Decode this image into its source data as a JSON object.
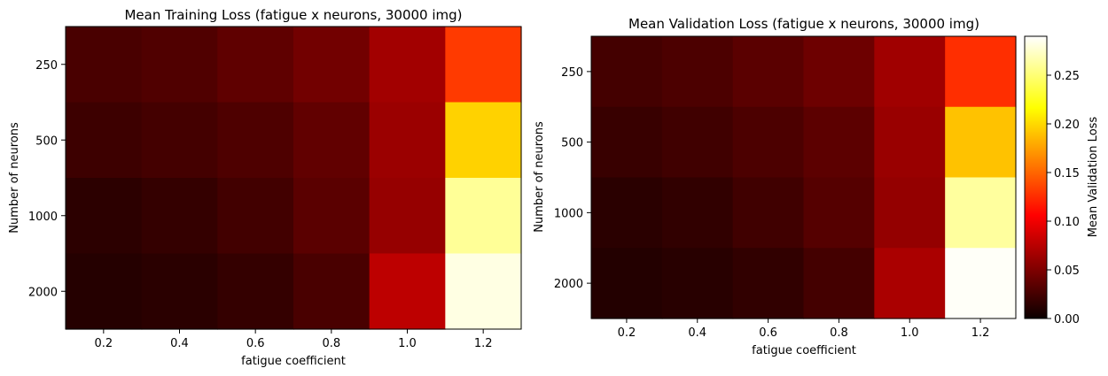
{
  "chart_data": [
    {
      "type": "heatmap",
      "title": "Mean Training Loss (fatigue x neurons, 30000 img)",
      "xlabel": "fatigue coefficient",
      "ylabel": "Number of neurons",
      "x_categories": [
        "0.2",
        "0.4",
        "0.6",
        "0.8",
        "1.0",
        "1.2"
      ],
      "y_categories": [
        "250",
        "500",
        "1000",
        "2000"
      ],
      "colormap": "hot",
      "vmin": 0.0,
      "vmax": 0.29,
      "values": [
        [
          0.026,
          0.029,
          0.035,
          0.043,
          0.063,
          0.131
        ],
        [
          0.021,
          0.024,
          0.028,
          0.036,
          0.06,
          0.197
        ],
        [
          0.014,
          0.017,
          0.023,
          0.033,
          0.058,
          0.26
        ],
        [
          0.011,
          0.013,
          0.017,
          0.026,
          0.074,
          0.282
        ]
      ]
    },
    {
      "type": "heatmap",
      "title": "Mean Validation Loss (fatigue x neurons, 30000 img)",
      "xlabel": "fatigue coefficient",
      "ylabel": "Number of neurons",
      "x_categories": [
        "0.2",
        "0.4",
        "0.6",
        "0.8",
        "1.0",
        "1.2"
      ],
      "y_categories": [
        "250",
        "500",
        "1000",
        "2000"
      ],
      "colormap": "hot",
      "vmin": 0.0,
      "vmax": 0.29,
      "values": [
        [
          0.024,
          0.027,
          0.033,
          0.041,
          0.062,
          0.126
        ],
        [
          0.019,
          0.022,
          0.027,
          0.034,
          0.059,
          0.19
        ],
        [
          0.013,
          0.016,
          0.022,
          0.031,
          0.057,
          0.262
        ],
        [
          0.01,
          0.012,
          0.016,
          0.024,
          0.066,
          0.288
        ]
      ],
      "colorbar": {
        "label": "Mean Validation Loss",
        "ticks": [
          0.0,
          0.05,
          0.1,
          0.15,
          0.2,
          0.25
        ],
        "tick_labels": [
          "0.00",
          "0.05",
          "0.10",
          "0.15",
          "0.20",
          "0.25"
        ]
      }
    }
  ]
}
